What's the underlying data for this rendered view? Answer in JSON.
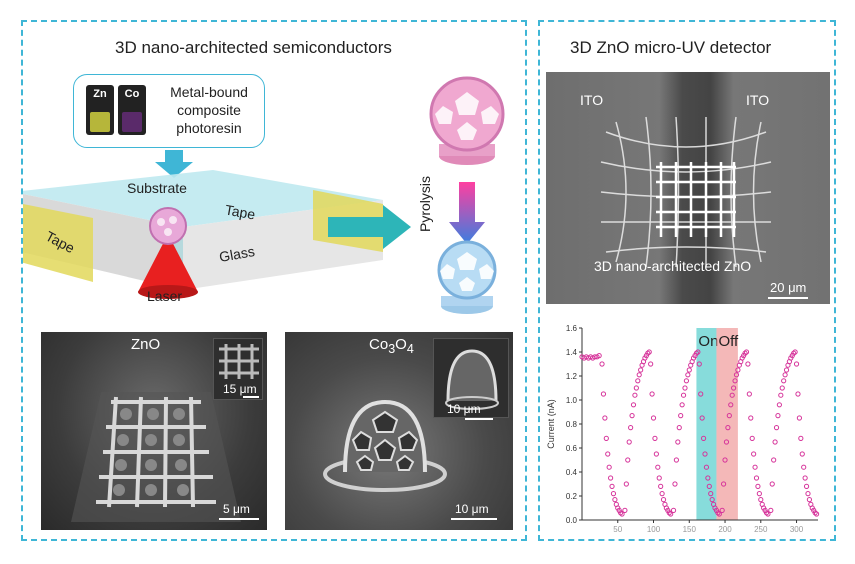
{
  "left_panel": {
    "title": "3D nano-architected semiconductors",
    "resin": {
      "vial_zn": "Zn",
      "vial_co": "Co",
      "text_line1": "Metal-bound",
      "text_line2": "composite",
      "text_line3": "photoresin"
    },
    "labels": {
      "substrate": "Substrate",
      "tape_right": "Tape",
      "tape_left": "Tape",
      "glass": "Glass",
      "laser": "Laser",
      "pyrolysis": "Pyrolysis"
    },
    "sem_zno": {
      "label": "ZnO",
      "inset_scale": "15 μm",
      "scale": "5 μm"
    },
    "sem_co": {
      "label_base": "Co",
      "sub1": "3",
      "mid": "O",
      "sub2": "4",
      "inset_scale": "10 μm",
      "scale": "10 μm"
    }
  },
  "right_panel": {
    "title": "3D ZnO micro-UV detector",
    "sem": {
      "ito_left": "ITO",
      "ito_right": "ITO",
      "caption": "3D nano-architected ZnO",
      "scale": "20 μm"
    }
  },
  "colors": {
    "accent": "#3fb6d6",
    "on_band": "#5fd0cf",
    "off_band": "#f0a0a0",
    "points": "#d6339a"
  },
  "chart_data": {
    "type": "scatter",
    "ylabel": "Current (nA)",
    "xlabel": "",
    "ylim": [
      0,
      1.6
    ],
    "xlim": [
      0,
      330
    ],
    "y_ticks": [
      0.0,
      0.2,
      0.4,
      0.6,
      0.8,
      1.0,
      1.2,
      1.4,
      1.6
    ],
    "y_tick_labels": [
      "0.0",
      "0.2",
      "0.4",
      "0.6",
      "0.8",
      "1.0",
      "1.2",
      "1.4",
      "1.6"
    ],
    "x_ticks": [
      50,
      100,
      150,
      200,
      250,
      300
    ],
    "x_tick_labels": [
      "50",
      "100",
      "150",
      "200",
      "250",
      "300"
    ],
    "bands": [
      {
        "label": "On",
        "x0": 160,
        "x1": 188
      },
      {
        "label": "Off",
        "x0": 188,
        "x1": 218
      }
    ],
    "series": [
      {
        "points": [
          [
            0,
            1.36
          ],
          [
            3,
            1.35
          ],
          [
            6,
            1.36
          ],
          [
            9,
            1.35
          ],
          [
            12,
            1.36
          ],
          [
            15,
            1.35
          ],
          [
            18,
            1.36
          ],
          [
            21,
            1.36
          ],
          [
            24,
            1.37
          ],
          [
            28,
            1.3
          ],
          [
            30,
            1.05
          ],
          [
            32,
            0.85
          ],
          [
            34,
            0.68
          ],
          [
            36,
            0.55
          ],
          [
            38,
            0.44
          ],
          [
            40,
            0.35
          ],
          [
            42,
            0.28
          ],
          [
            44,
            0.22
          ],
          [
            46,
            0.17
          ],
          [
            48,
            0.13
          ],
          [
            50,
            0.1
          ],
          [
            52,
            0.08
          ],
          [
            54,
            0.06
          ],
          [
            56,
            0.05
          ],
          [
            60,
            0.08
          ],
          [
            62,
            0.3
          ],
          [
            64,
            0.5
          ],
          [
            66,
            0.65
          ],
          [
            68,
            0.77
          ],
          [
            70,
            0.87
          ],
          [
            72,
            0.96
          ],
          [
            74,
            1.04
          ],
          [
            76,
            1.1
          ],
          [
            78,
            1.16
          ],
          [
            80,
            1.21
          ],
          [
            82,
            1.25
          ],
          [
            84,
            1.29
          ],
          [
            86,
            1.32
          ],
          [
            88,
            1.35
          ],
          [
            90,
            1.37
          ],
          [
            92,
            1.39
          ],
          [
            94,
            1.4
          ],
          [
            96,
            1.3
          ],
          [
            98,
            1.05
          ],
          [
            100,
            0.85
          ],
          [
            102,
            0.68
          ],
          [
            104,
            0.55
          ],
          [
            106,
            0.44
          ],
          [
            108,
            0.35
          ],
          [
            110,
            0.28
          ],
          [
            112,
            0.22
          ],
          [
            114,
            0.17
          ],
          [
            116,
            0.13
          ],
          [
            118,
            0.1
          ],
          [
            120,
            0.08
          ],
          [
            122,
            0.06
          ],
          [
            124,
            0.05
          ],
          [
            128,
            0.08
          ],
          [
            130,
            0.3
          ],
          [
            132,
            0.5
          ],
          [
            134,
            0.65
          ],
          [
            136,
            0.77
          ],
          [
            138,
            0.87
          ],
          [
            140,
            0.96
          ],
          [
            142,
            1.04
          ],
          [
            144,
            1.1
          ],
          [
            146,
            1.16
          ],
          [
            148,
            1.21
          ],
          [
            150,
            1.25
          ],
          [
            152,
            1.29
          ],
          [
            154,
            1.32
          ],
          [
            156,
            1.35
          ],
          [
            158,
            1.37
          ],
          [
            160,
            1.39
          ],
          [
            162,
            1.4
          ],
          [
            164,
            1.3
          ],
          [
            166,
            1.05
          ],
          [
            168,
            0.85
          ],
          [
            170,
            0.68
          ],
          [
            172,
            0.55
          ],
          [
            174,
            0.44
          ],
          [
            176,
            0.35
          ],
          [
            178,
            0.28
          ],
          [
            180,
            0.22
          ],
          [
            182,
            0.17
          ],
          [
            184,
            0.13
          ],
          [
            186,
            0.1
          ],
          [
            188,
            0.08
          ],
          [
            190,
            0.06
          ],
          [
            192,
            0.05
          ],
          [
            196,
            0.08
          ],
          [
            198,
            0.3
          ],
          [
            200,
            0.5
          ],
          [
            202,
            0.65
          ],
          [
            204,
            0.77
          ],
          [
            206,
            0.87
          ],
          [
            208,
            0.96
          ],
          [
            210,
            1.04
          ],
          [
            212,
            1.1
          ],
          [
            214,
            1.16
          ],
          [
            216,
            1.21
          ],
          [
            218,
            1.25
          ],
          [
            220,
            1.29
          ],
          [
            222,
            1.32
          ],
          [
            224,
            1.35
          ],
          [
            226,
            1.37
          ],
          [
            228,
            1.39
          ],
          [
            230,
            1.4
          ],
          [
            232,
            1.3
          ],
          [
            234,
            1.05
          ],
          [
            236,
            0.85
          ],
          [
            238,
            0.68
          ],
          [
            240,
            0.55
          ],
          [
            242,
            0.44
          ],
          [
            244,
            0.35
          ],
          [
            246,
            0.28
          ],
          [
            248,
            0.22
          ],
          [
            250,
            0.17
          ],
          [
            252,
            0.13
          ],
          [
            254,
            0.1
          ],
          [
            256,
            0.08
          ],
          [
            258,
            0.06
          ],
          [
            260,
            0.05
          ],
          [
            264,
            0.08
          ],
          [
            266,
            0.3
          ],
          [
            268,
            0.5
          ],
          [
            270,
            0.65
          ],
          [
            272,
            0.77
          ],
          [
            274,
            0.87
          ],
          [
            276,
            0.96
          ],
          [
            278,
            1.04
          ],
          [
            280,
            1.1
          ],
          [
            282,
            1.16
          ],
          [
            284,
            1.21
          ],
          [
            286,
            1.25
          ],
          [
            288,
            1.29
          ],
          [
            290,
            1.32
          ],
          [
            292,
            1.35
          ],
          [
            294,
            1.37
          ],
          [
            296,
            1.39
          ],
          [
            298,
            1.4
          ],
          [
            300,
            1.3
          ],
          [
            302,
            1.05
          ],
          [
            304,
            0.85
          ],
          [
            306,
            0.68
          ],
          [
            308,
            0.55
          ],
          [
            310,
            0.44
          ],
          [
            312,
            0.35
          ],
          [
            314,
            0.28
          ],
          [
            316,
            0.22
          ],
          [
            318,
            0.17
          ],
          [
            320,
            0.13
          ],
          [
            322,
            0.1
          ],
          [
            324,
            0.08
          ],
          [
            326,
            0.06
          ],
          [
            328,
            0.05
          ]
        ]
      }
    ]
  }
}
